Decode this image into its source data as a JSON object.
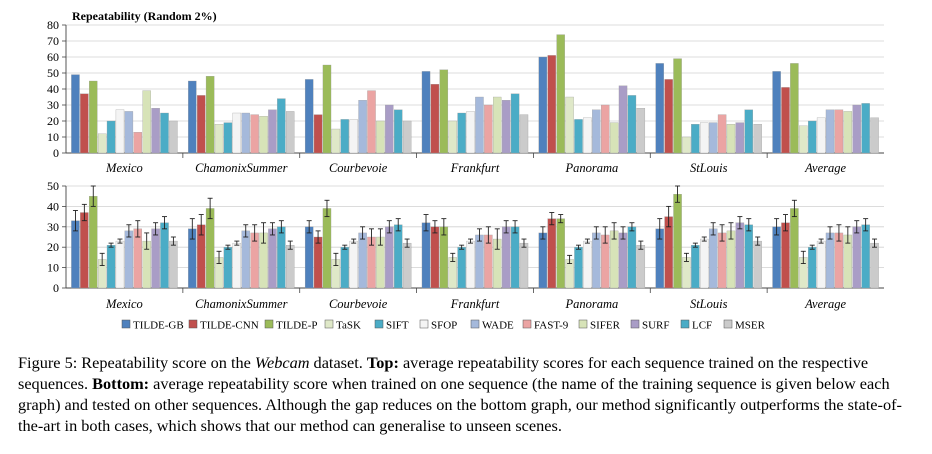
{
  "series_names": [
    "TILDE-GB",
    "TILDE-CNN",
    "TILDE-P",
    "TaSK",
    "SIFT",
    "SFOP",
    "WADE",
    "FAST-9",
    "SIFER",
    "SURF",
    "LCF",
    "MSER"
  ],
  "colors": {
    "TILDE-GB": "#4f81bd",
    "TILDE-CNN": "#c0504d",
    "TILDE-P": "#9bbb59",
    "TaSK": "#dfe8c8",
    "SIFT": "#4bacc6",
    "SFOP": "#f4f4f4",
    "WADE": "#a5b9db",
    "FAST-9": "#eba4a3",
    "SIFER": "#d7e3b8",
    "SURF": "#a99dc6",
    "LCF": "#4bacc6",
    "MSER": "#cbcbcb"
  },
  "chart_data": [
    {
      "type": "bar",
      "title": "Repeatability (Random 2%)",
      "categories": [
        "Mexico",
        "ChamonixSummer",
        "Courbevoie",
        "Frankfurt",
        "Panorama",
        "StLouis",
        "Average"
      ],
      "ylim": [
        0,
        80
      ],
      "yticks": [
        0,
        10,
        20,
        30,
        40,
        50,
        60,
        70,
        80
      ],
      "grid": true,
      "series": [
        {
          "name": "TILDE-GB",
          "values": [
            49,
            45,
            46,
            51,
            60,
            56,
            51
          ]
        },
        {
          "name": "TILDE-CNN",
          "values": [
            37,
            36,
            24,
            43,
            61,
            46,
            41
          ]
        },
        {
          "name": "TILDE-P",
          "values": [
            45,
            48,
            55,
            52,
            74,
            59,
            56
          ]
        },
        {
          "name": "TaSK",
          "values": [
            12,
            18,
            15,
            20,
            35,
            10,
            17
          ]
        },
        {
          "name": "SIFT",
          "values": [
            20,
            19,
            21,
            25,
            21,
            18,
            20
          ]
        },
        {
          "name": "SFOP",
          "values": [
            27,
            25,
            21,
            26,
            22,
            19,
            22
          ]
        },
        {
          "name": "WADE",
          "values": [
            26,
            25,
            33,
            35,
            27,
            19,
            27
          ]
        },
        {
          "name": "FAST-9",
          "values": [
            13,
            24,
            39,
            30,
            30,
            24,
            27
          ]
        },
        {
          "name": "SIFER",
          "values": [
            39,
            23,
            20,
            35,
            19,
            18,
            26
          ]
        },
        {
          "name": "SURF",
          "values": [
            28,
            27,
            30,
            33,
            42,
            19,
            30
          ]
        },
        {
          "name": "LCF",
          "values": [
            25,
            34,
            27,
            37,
            36,
            27,
            31
          ]
        },
        {
          "name": "MSER",
          "values": [
            20,
            26,
            20,
            24,
            28,
            18,
            22
          ]
        }
      ]
    },
    {
      "type": "bar",
      "title": "",
      "categories": [
        "Mexico",
        "ChamonixSummer",
        "Courbevoie",
        "Frankfurt",
        "Panorama",
        "StLouis",
        "Average"
      ],
      "ylim": [
        0,
        50
      ],
      "yticks": [
        0,
        10,
        20,
        30,
        40,
        50
      ],
      "grid": true,
      "error_bars": true,
      "legend": "bottom",
      "series": [
        {
          "name": "TILDE-GB",
          "values": [
            33,
            29,
            30,
            32,
            27,
            29,
            30
          ],
          "errors": [
            5,
            5,
            3,
            4,
            3,
            5,
            4
          ]
        },
        {
          "name": "TILDE-CNN",
          "values": [
            37,
            31,
            25,
            30,
            34,
            35,
            32
          ],
          "errors": [
            4,
            5,
            3,
            3,
            3,
            5,
            4
          ]
        },
        {
          "name": "TILDE-P",
          "values": [
            45,
            39,
            39,
            30,
            34,
            46,
            39
          ],
          "errors": [
            5,
            5,
            4,
            4,
            2,
            4,
            4
          ]
        },
        {
          "name": "TaSK",
          "values": [
            14,
            15,
            14,
            15,
            14,
            15,
            15
          ],
          "errors": [
            3,
            3,
            3,
            2,
            2,
            2,
            3
          ]
        },
        {
          "name": "SIFT",
          "values": [
            21,
            20,
            20,
            20,
            20,
            21,
            20
          ],
          "errors": [
            1,
            1,
            1,
            1,
            1,
            1,
            1
          ]
        },
        {
          "name": "SFOP",
          "values": [
            23,
            22,
            23,
            23,
            23,
            24,
            23
          ],
          "errors": [
            1,
            1,
            1,
            1,
            1,
            1,
            1
          ]
        },
        {
          "name": "WADE",
          "values": [
            28,
            28,
            27,
            26,
            27,
            29,
            27
          ],
          "errors": [
            3,
            3,
            3,
            3,
            3,
            3,
            3
          ]
        },
        {
          "name": "FAST-9",
          "values": [
            29,
            27,
            25,
            26,
            26,
            27,
            27
          ],
          "errors": [
            4,
            4,
            4,
            4,
            4,
            4,
            4
          ]
        },
        {
          "name": "SIFER",
          "values": [
            23,
            27,
            25,
            24,
            28,
            28,
            26
          ],
          "errors": [
            4,
            5,
            4,
            5,
            4,
            4,
            4
          ]
        },
        {
          "name": "SURF",
          "values": [
            29,
            29,
            30,
            30,
            27,
            32,
            30
          ],
          "errors": [
            3,
            3,
            3,
            3,
            3,
            3,
            3
          ]
        },
        {
          "name": "LCF",
          "values": [
            32,
            30,
            31,
            30,
            30,
            31,
            31
          ],
          "errors": [
            3,
            3,
            3,
            3,
            2,
            3,
            3
          ]
        },
        {
          "name": "MSER",
          "values": [
            23,
            21,
            22,
            22,
            21,
            23,
            22
          ],
          "errors": [
            2,
            2,
            2,
            2,
            2,
            2,
            2
          ]
        }
      ]
    }
  ],
  "caption": {
    "fig_label": "Figure 5: Repeatability score on the ",
    "dataset_name": "Webcam",
    "after_dataset": " dataset. ",
    "top_label": "Top:",
    "top_text": " average repeatability scores for each sequence trained on the respective sequences. ",
    "bottom_label": "Bottom:",
    "bottom_text": " average repeatability score when trained on one sequence (the name of the training sequence is given below each graph) and tested on other sequences.  Although the gap reduces on the bottom graph, our method significantly outperforms the state-of-the-art in both cases, which shows that our method can generalise to unseen scenes."
  }
}
